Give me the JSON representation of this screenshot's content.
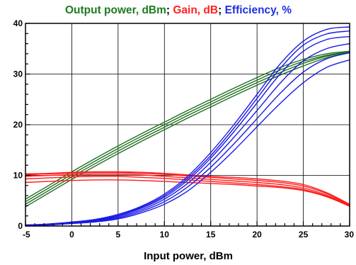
{
  "chart_data": {
    "type": "line",
    "title_parts": [
      {
        "text": "Output power, dBm",
        "color": "#1f7a1f"
      },
      {
        "text": "; ",
        "color": "#000000"
      },
      {
        "text": "Gain, dB",
        "color": "#ff2020"
      },
      {
        "text": "; ",
        "color": "#000000"
      },
      {
        "text": "Efficiency, %",
        "color": "#1f2fe0"
      }
    ],
    "xlabel": "Input power, dBm",
    "ylabel": "",
    "xlim": [
      -5,
      30
    ],
    "ylim": [
      0,
      40
    ],
    "x_ticks": [
      "-5",
      "0",
      "5",
      "10",
      "15",
      "20",
      "25",
      "30"
    ],
    "y_ticks": [
      "0",
      "10",
      "20",
      "30",
      "40"
    ],
    "grid": true,
    "legend": "none",
    "x": [
      -5,
      -2.5,
      0,
      2.5,
      5,
      7.5,
      10,
      12.5,
      15,
      17.5,
      20,
      22.5,
      25,
      27.5,
      30
    ],
    "series": [
      {
        "group": "output",
        "color": "#1f6e1f",
        "values": [
          5.3,
          8.0,
          10.7,
          13.3,
          15.8,
          18.2,
          20.5,
          22.8,
          25.0,
          27.2,
          29.3,
          31.3,
          32.9,
          34.0,
          34.5
        ]
      },
      {
        "group": "output",
        "color": "#1f6e1f",
        "values": [
          4.8,
          7.5,
          10.2,
          12.8,
          15.3,
          17.7,
          20.0,
          22.3,
          24.5,
          26.7,
          28.8,
          30.8,
          32.5,
          33.7,
          34.4
        ]
      },
      {
        "group": "output",
        "color": "#1f6e1f",
        "values": [
          4.3,
          7.0,
          9.7,
          12.3,
          14.8,
          17.2,
          19.5,
          21.8,
          24.0,
          26.2,
          28.3,
          30.3,
          32.1,
          33.5,
          34.3
        ]
      },
      {
        "group": "output",
        "color": "#1f6e1f",
        "values": [
          3.8,
          6.5,
          9.2,
          11.8,
          14.3,
          16.7,
          19.0,
          21.3,
          23.5,
          25.7,
          27.8,
          29.8,
          31.6,
          33.2,
          34.2
        ]
      },
      {
        "group": "gain",
        "color": "#ff1a1a",
        "values": [
          10.3,
          10.4,
          10.6,
          10.7,
          10.7,
          10.6,
          10.4,
          10.1,
          9.8,
          9.6,
          9.3,
          8.9,
          8.2,
          6.6,
          4.3
        ]
      },
      {
        "group": "gain",
        "color": "#ff1a1a",
        "values": [
          10.1,
          10.3,
          10.4,
          10.5,
          10.5,
          10.4,
          10.2,
          9.9,
          9.6,
          9.3,
          9.0,
          8.6,
          7.9,
          6.4,
          4.2
        ]
      },
      {
        "group": "gain",
        "color": "#ff1a1a",
        "values": [
          9.8,
          10.0,
          10.1,
          10.2,
          10.2,
          10.1,
          9.8,
          9.5,
          9.2,
          8.9,
          8.6,
          8.2,
          7.5,
          6.1,
          4.1
        ]
      },
      {
        "group": "gain",
        "color": "#ff1a1a",
        "values": [
          9.3,
          9.5,
          9.7,
          9.8,
          9.8,
          9.6,
          9.4,
          9.1,
          8.8,
          8.5,
          8.2,
          7.8,
          7.2,
          5.9,
          4.0
        ]
      },
      {
        "group": "gain",
        "color": "#ff1a1a",
        "values": [
          8.6,
          8.8,
          9.0,
          9.1,
          9.1,
          9.0,
          8.8,
          8.6,
          8.4,
          8.2,
          7.9,
          7.6,
          7.0,
          5.8,
          3.9
        ]
      },
      {
        "group": "efficiency",
        "color": "#1a1ae6",
        "values": [
          0.2,
          0.4,
          0.8,
          1.3,
          2.3,
          3.9,
          6.3,
          9.8,
          14.5,
          20.0,
          26.0,
          32.0,
          36.5,
          38.8,
          39.3
        ]
      },
      {
        "group": "efficiency",
        "color": "#1a1ae6",
        "values": [
          0.2,
          0.4,
          0.7,
          1.2,
          2.1,
          3.7,
          6.0,
          9.4,
          13.9,
          19.3,
          25.2,
          31.1,
          35.7,
          37.9,
          38.5
        ]
      },
      {
        "group": "efficiency",
        "color": "#1a1ae6",
        "values": [
          0.2,
          0.3,
          0.7,
          1.1,
          2.0,
          3.5,
          5.7,
          9.0,
          13.4,
          18.6,
          24.3,
          30.0,
          34.5,
          36.8,
          37.4
        ]
      },
      {
        "group": "efficiency",
        "color": "#1a1ae6",
        "values": [
          0.2,
          0.3,
          0.6,
          1.0,
          1.8,
          3.2,
          5.3,
          8.4,
          12.6,
          17.5,
          22.8,
          28.2,
          32.6,
          35.0,
          36.0
        ]
      },
      {
        "group": "efficiency",
        "color": "#1a1ae6",
        "values": [
          0.1,
          0.3,
          0.6,
          0.9,
          1.6,
          2.9,
          4.8,
          7.7,
          11.6,
          16.2,
          21.2,
          26.2,
          30.4,
          33.0,
          34.2
        ]
      },
      {
        "group": "efficiency",
        "color": "#1a1ae6",
        "values": [
          0.1,
          0.2,
          0.5,
          0.8,
          1.4,
          2.6,
          4.3,
          6.9,
          10.6,
          14.9,
          19.6,
          24.2,
          28.3,
          31.3,
          32.8
        ]
      }
    ]
  }
}
